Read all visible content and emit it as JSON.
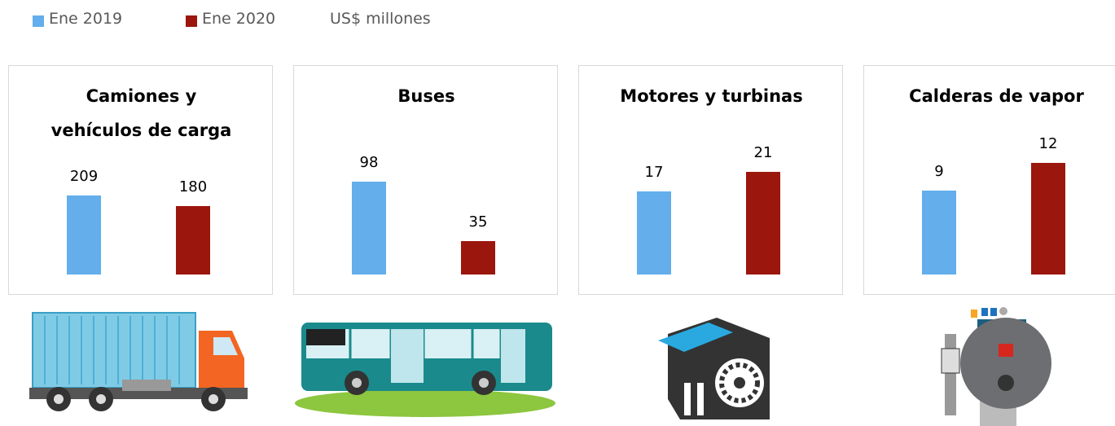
{
  "unit": "US$ millones",
  "chart_data": [
    {
      "type": "bar",
      "title": "Camiones y vehículos de carga",
      "categories": [
        null,
        null
      ],
      "ylim": [
        0,
        400
      ],
      "series": [
        {
          "name": "Ene 2019",
          "color": "#63aeeb",
          "values": [
            209,
            null
          ]
        },
        {
          "name": "Ene 2020",
          "color": "#9b160d",
          "values": [
            null,
            180
          ]
        }
      ]
    },
    {
      "type": "bar",
      "title": "Buses",
      "categories": [
        null,
        null
      ],
      "ylim": [
        0,
        160
      ],
      "series": [
        {
          "name": "Ene 2019",
          "color": "#63aeeb",
          "values": [
            98,
            null
          ]
        },
        {
          "name": "Ene 2020",
          "color": "#9b160d",
          "values": [
            null,
            35
          ]
        }
      ]
    },
    {
      "type": "bar",
      "title": "Motores y turbinas",
      "categories": [
        null,
        null
      ],
      "ylim": [
        0,
        31
      ],
      "series": [
        {
          "name": "Ene 2019",
          "color": "#63aeeb",
          "values": [
            17,
            null
          ]
        },
        {
          "name": "Ene 2020",
          "color": "#9b160d",
          "values": [
            null,
            21
          ]
        }
      ]
    },
    {
      "type": "bar",
      "title": "Calderas de vapor",
      "categories": [
        null,
        null
      ],
      "ylim": [
        0,
        16.3
      ],
      "series": [
        {
          "name": "Ene 2019",
          "color": "#63aeeb",
          "values": [
            9,
            null
          ]
        },
        {
          "name": "Ene 2020",
          "color": "#9b160d",
          "values": [
            null,
            12
          ]
        }
      ]
    }
  ]
}
